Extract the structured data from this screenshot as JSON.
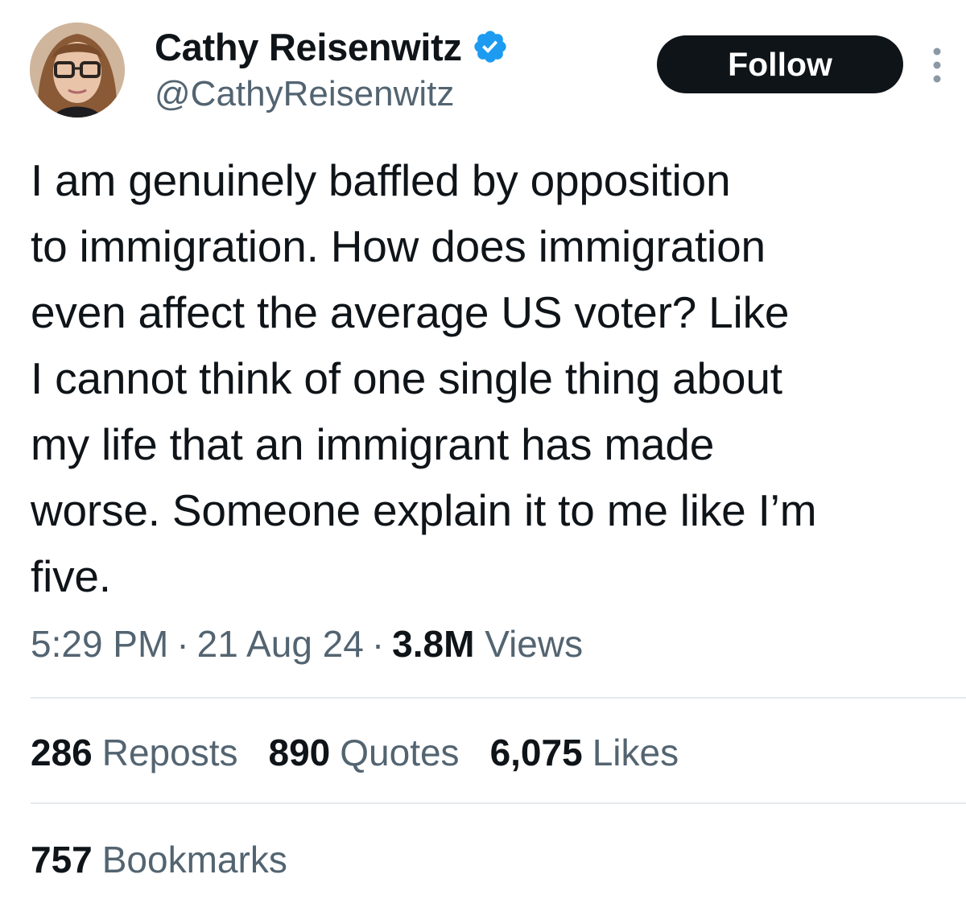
{
  "author": {
    "display_name": "Cathy Reisenwitz",
    "handle": "@CathyReisenwitz",
    "verified_icon": "verified-badge-icon",
    "avatar_icon": "profile-photo"
  },
  "actions": {
    "follow_label": "Follow",
    "more_icon": "more-vertical-icon"
  },
  "tweet": {
    "lines": [
      "I am genuinely baffled by opposition",
      "to immigration. How does immigration",
      "even affect the average US voter? Like",
      "I cannot think of one single thing about",
      "my life that an immigrant has made",
      "worse. Someone explain it to me like I’m",
      "five."
    ]
  },
  "meta": {
    "time": "5:29 PM",
    "separator": "·",
    "date": "21 Aug 24",
    "views_count": "3.8M",
    "views_label": "Views"
  },
  "stats": {
    "reposts_count": "286",
    "reposts_label": "Reposts",
    "quotes_count": "890",
    "quotes_label": "Quotes",
    "likes_count": "6,075",
    "likes_label": "Likes",
    "bookmarks_count": "757",
    "bookmarks_label": "Bookmarks"
  },
  "colors": {
    "text_primary": "#0f1419",
    "text_secondary": "#536471",
    "verified_blue": "#1d9bf0",
    "divider": "#e6eaed",
    "follow_bg": "#0f1419"
  }
}
